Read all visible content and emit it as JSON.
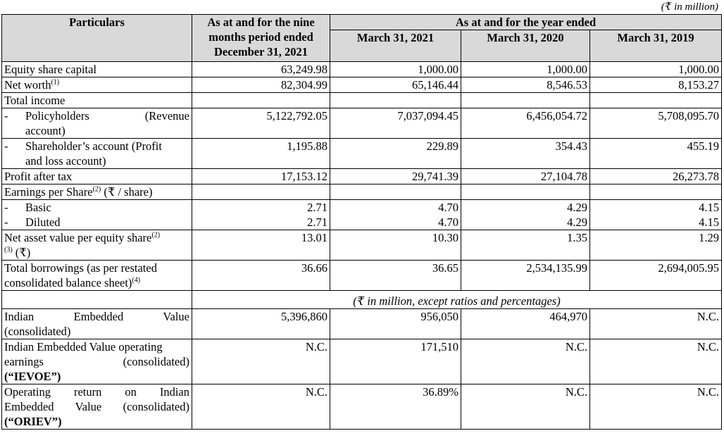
{
  "unit_note": "(₹ in million)",
  "headers": {
    "particulars": "Particulars",
    "nine_months": "As at and for the nine months period ended December 31, 2021",
    "year_group": "As at and for the year ended",
    "fy2021": "March 31, 2021",
    "fy2020": "March 31, 2020",
    "fy2019": "March 31, 2019"
  },
  "rows": {
    "equity": {
      "label": "Equity share capital",
      "v": [
        "63,249.98",
        "1,000.00",
        "1,000.00",
        "1,000.00"
      ]
    },
    "networth": {
      "label": "Net worth",
      "sup": "(1)",
      "v": [
        "82,304.99",
        "65,146.44",
        "8,546.53",
        "8,153.27"
      ]
    },
    "total_income": {
      "label": "Total income"
    },
    "policyholders": {
      "dash": "-",
      "label_a": "Policyholders",
      "label_b": "(Revenue",
      "label_c": "account)",
      "v": [
        "5,122,792.05",
        "7,037,094.45",
        "6,456,054.72",
        "5,708,095.70"
      ]
    },
    "shareholders": {
      "dash": "-",
      "label_a": "Shareholder’s account (Profit",
      "label_b": "and loss account)",
      "v": [
        "1,195.88",
        "229.89",
        "354.43",
        "455.19"
      ]
    },
    "pat": {
      "label": "Profit after tax",
      "v": [
        "17,153.12",
        "29,741.39",
        "27,104.78",
        "26,273.78"
      ]
    },
    "eps": {
      "label_a": "Earnings per Share",
      "sup": "(2)",
      "label_b": " (₹ / share)"
    },
    "basic": {
      "dash": "-",
      "label": "Basic",
      "v": [
        "2.71",
        "4.70",
        "4.29",
        "4.15"
      ]
    },
    "diluted": {
      "dash": "-",
      "label": "Diluted",
      "v": [
        "2.71",
        "4.70",
        "4.29",
        "4.15"
      ]
    },
    "nav": {
      "label_a": "Net asset value per equity share",
      "sup1": "(2)",
      "sup2": "(3)",
      "label_b": " (₹)",
      "v": [
        "13.01",
        "10.30",
        "1.35",
        "1.29"
      ]
    },
    "borrowings": {
      "label_a": "Total borrowings (as per restated",
      "label_b": "consolidated balance sheet)",
      "sup": "(4)",
      "v": [
        "36.66",
        "36.65",
        "2,534,135.99",
        "2,694,005.95"
      ]
    }
  },
  "caption2": "(₹ in million, except ratios and percentages)",
  "rows2": {
    "iev": {
      "l1a": "Indian",
      "l1b": "Embedded",
      "l1c": "Value",
      "l2": "(consolidated)",
      "v": [
        "5,396,860",
        "956,050",
        "464,970",
        "N.C."
      ]
    },
    "ievoe": {
      "l1": "Indian Embedded Value operating",
      "l2a": "earnings",
      "l2b": "(consolidated)",
      "l3": "(“IEVOE”)",
      "v": [
        "N.C.",
        "171,510",
        "N.C.",
        "N.C."
      ]
    },
    "oriev": {
      "l1a": "Operating",
      "l1b": "return",
      "l1c": "on",
      "l1d": "Indian",
      "l2": "Embedded Value (consolidated)",
      "l3": "(“ORIEV”)",
      "v": [
        "N.C.",
        "36.89%",
        "N.C.",
        "N.C."
      ]
    }
  }
}
